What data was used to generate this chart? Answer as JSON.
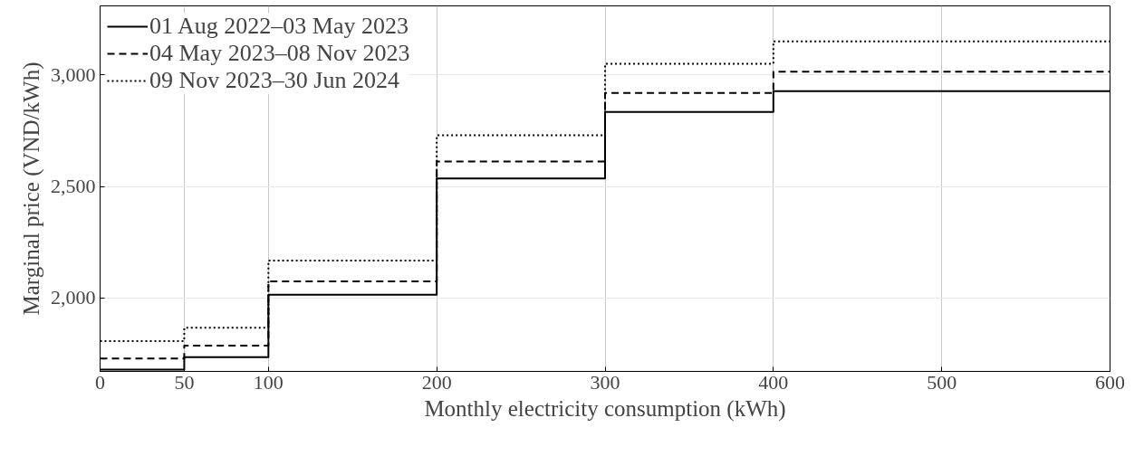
{
  "chart_data": {
    "type": "step",
    "xlabel": "Monthly electricity consumption (kWh)",
    "ylabel": "Marginal price (VND/kWh)",
    "x": [
      0,
      50,
      100,
      200,
      300,
      400,
      600
    ],
    "series": [
      {
        "name": "01 Aug 2022–03 May 2023",
        "color": "#000000",
        "line_style": "solid",
        "values": [
          1678,
          1734,
          2014,
          2536,
          2834,
          2927,
          2927
        ]
      },
      {
        "name": "04 May 2023–08 Nov 2023",
        "color": "#000000",
        "line_style": "dashed",
        "values": [
          1728,
          1786,
          2074,
          2612,
          2919,
          3015,
          3015
        ]
      },
      {
        "name": "09 Nov 2023–30 Jun 2024",
        "color": "#000000",
        "line_style": "dotted",
        "values": [
          1806,
          1866,
          2167,
          2729,
          3050,
          3151,
          3151
        ]
      }
    ],
    "xlim": [
      0,
      600
    ],
    "xticks": [
      0,
      50,
      100,
      200,
      300,
      400,
      500,
      600
    ],
    "ylim": [
      1670,
      3310
    ],
    "yticks": [
      {
        "value": 2000,
        "label": "2,000"
      },
      {
        "value": 2500,
        "label": "2,500"
      },
      {
        "value": 3000,
        "label": "3,000"
      }
    ],
    "grid": true,
    "legend": "top left"
  }
}
